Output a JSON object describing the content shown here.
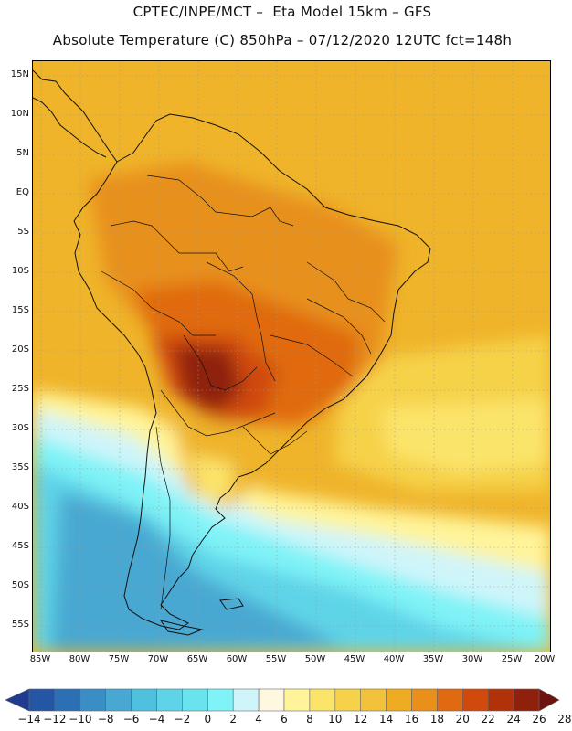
{
  "header": {
    "line1": "CPTEC/INPE/MCT –  Eta Model 15km – GFS",
    "line2": "Absolute Temperature (C) 850hPa – 07/12/2020 12UTC fct=148h"
  },
  "map": {
    "lat_labels": [
      "15N",
      "10N",
      "5N",
      "EQ",
      "5S",
      "10S",
      "15S",
      "20S",
      "25S",
      "30S",
      "35S",
      "40S",
      "45S",
      "50S",
      "55S"
    ],
    "lon_labels": [
      "85W",
      "80W",
      "75W",
      "70W",
      "65W",
      "60W",
      "55W",
      "50W",
      "45W",
      "40W",
      "35W",
      "30W",
      "25W",
      "20W"
    ],
    "colors": {
      "frame": "#000000",
      "coastline": "#111111",
      "gridline": "#9a9a9a"
    }
  },
  "colorbar": {
    "colors": [
      "#1f3c8f",
      "#2456a3",
      "#2c70b3",
      "#3a8ec4",
      "#49a8d1",
      "#4fc0de",
      "#5fd4e8",
      "#69e4ee",
      "#7ff3f7",
      "#cff5fa",
      "#fff8e0",
      "#fff49a",
      "#fbe46a",
      "#f6d24a",
      "#f2c23c",
      "#eeac22",
      "#e8901a",
      "#e06a10",
      "#cf4a0c",
      "#b0320a",
      "#8e200c",
      "#6e1410"
    ],
    "labels": [
      "-14",
      "-12",
      "-10",
      "-8",
      "-6",
      "-4",
      "-2",
      "0",
      "2",
      "4",
      "6",
      "8",
      "10",
      "12",
      "14",
      "16",
      "18",
      "20",
      "22",
      "24",
      "26",
      "28"
    ]
  }
}
